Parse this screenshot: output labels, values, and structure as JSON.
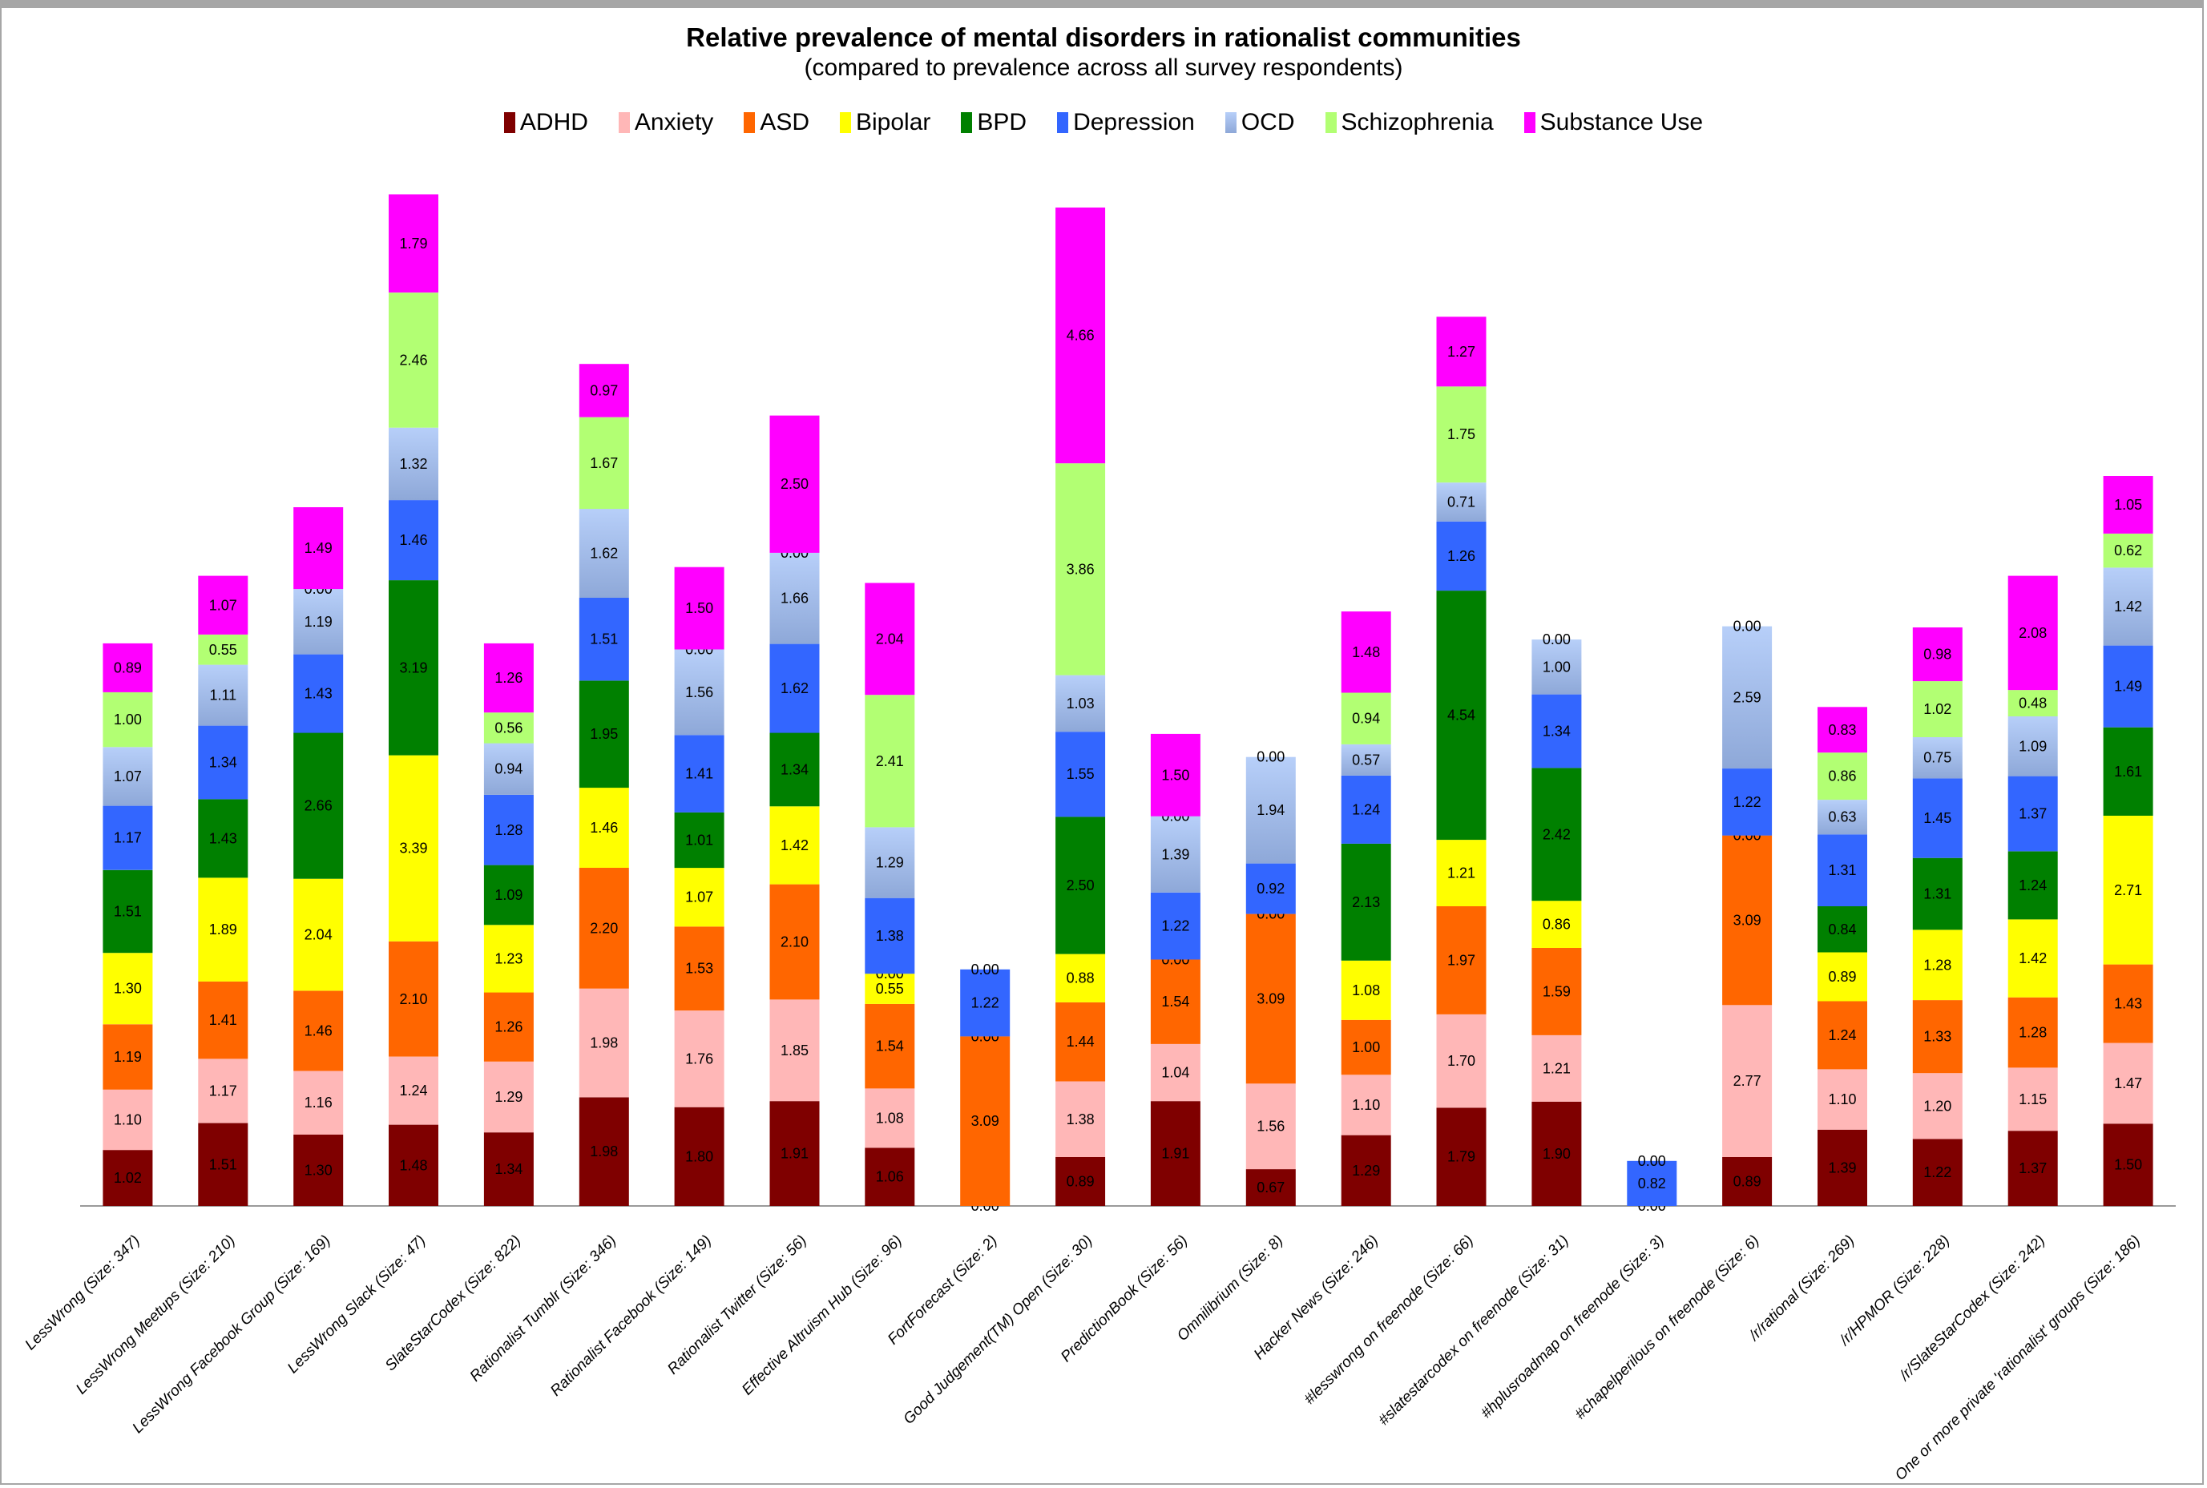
{
  "chart_data": {
    "type": "bar",
    "stacked": true,
    "title": "Relative prevalence of mental disorders in rationalist communities",
    "subtitle": "(compared to prevalence across all survey respondents)",
    "xlabel": "",
    "ylabel": "",
    "legend_position": "top",
    "grid": false,
    "ylim": [
      0,
      19
    ],
    "categories": [
      "LessWrong (Size: 347)",
      "LessWrong Meetups (Size: 210)",
      "LessWrong Facebook Group (Size: 169)",
      "LessWrong Slack (Size: 47)",
      "SlateStarCodex (Size: 822)",
      "Rationalist Tumblr (Size: 346)",
      "Rationalist Facebook (Size: 149)",
      "Rationalist Twitter (Size: 56)",
      "Effective Altruism Hub (Size: 96)",
      "FortForecast (Size: 2)",
      "Good Judgement(TM) Open  (Size: 30)",
      "PredictionBook (Size: 56)",
      "Omnilibrium (Size: 8)",
      "Hacker News (Size: 246)",
      "#lesswrong on freenode  (Size: 66)",
      "#slatestarcodex on freenode  (Size: 31)",
      "#hplusroadmap on freenode  (Size: 3)",
      "#chapelperilous on freenode (Size: 6)",
      "/r/rational (Size: 269)",
      "/r/HPMOR (Size: 228)",
      "/r/SlateStarCodex (Size: 242)",
      "One or more private 'rationalist' groups  (Size: 186)"
    ],
    "series": [
      {
        "name": "ADHD",
        "color": "#7f0000",
        "values": [
          1.02,
          1.51,
          1.3,
          1.48,
          1.34,
          1.98,
          1.8,
          1.91,
          1.06,
          0.0,
          0.89,
          1.91,
          0.67,
          1.29,
          1.79,
          1.9,
          0.0,
          0.89,
          1.39,
          1.22,
          1.37,
          1.5
        ],
        "show_zero": [
          false,
          false,
          false,
          false,
          false,
          false,
          false,
          false,
          false,
          true,
          false,
          false,
          false,
          false,
          false,
          false,
          true,
          false,
          false,
          false,
          false,
          false
        ]
      },
      {
        "name": "Anxiety",
        "color": "#ffb7b7",
        "values": [
          1.1,
          1.17,
          1.16,
          1.24,
          1.29,
          1.98,
          1.76,
          1.85,
          1.08,
          0.0,
          1.38,
          1.04,
          1.56,
          1.1,
          1.7,
          1.21,
          0.0,
          2.77,
          1.1,
          1.2,
          1.15,
          1.47
        ],
        "show_zero": [
          false,
          false,
          false,
          false,
          false,
          false,
          false,
          false,
          false,
          false,
          false,
          false,
          false,
          false,
          false,
          false,
          false,
          false,
          false,
          false,
          false,
          false
        ]
      },
      {
        "name": "ASD",
        "color": "#ff6600",
        "values": [
          1.19,
          1.41,
          1.46,
          2.1,
          1.26,
          2.2,
          1.53,
          2.1,
          1.54,
          3.09,
          1.44,
          1.54,
          3.09,
          1.0,
          1.97,
          1.59,
          0.0,
          3.09,
          1.24,
          1.33,
          1.28,
          1.43
        ],
        "show_zero": [
          false,
          false,
          false,
          false,
          false,
          false,
          false,
          false,
          false,
          false,
          false,
          false,
          false,
          false,
          false,
          false,
          false,
          false,
          false,
          false,
          false,
          false
        ]
      },
      {
        "name": "Bipolar",
        "color": "#ffff00",
        "values": [
          1.3,
          1.89,
          2.04,
          3.39,
          1.23,
          1.46,
          1.07,
          1.42,
          0.55,
          0.0,
          0.88,
          0.0,
          0.0,
          1.08,
          1.21,
          0.86,
          0.0,
          0.0,
          0.89,
          1.28,
          1.42,
          2.71
        ],
        "show_zero": [
          false,
          false,
          false,
          false,
          false,
          false,
          false,
          false,
          false,
          true,
          false,
          true,
          true,
          false,
          false,
          false,
          false,
          true,
          false,
          false,
          false,
          false
        ]
      },
      {
        "name": "BPD",
        "color": "#008000",
        "values": [
          1.51,
          1.43,
          2.66,
          3.19,
          1.09,
          1.95,
          1.01,
          1.34,
          0.0,
          0.0,
          2.5,
          0.0,
          0.0,
          2.13,
          4.54,
          2.42,
          0.0,
          0.0,
          0.84,
          1.31,
          1.24,
          1.61
        ],
        "show_zero": [
          false,
          false,
          false,
          false,
          false,
          false,
          false,
          false,
          true,
          false,
          false,
          false,
          false,
          false,
          false,
          false,
          false,
          false,
          false,
          false,
          false,
          false
        ]
      },
      {
        "name": "Depression",
        "color": "#3366ff",
        "values": [
          1.17,
          1.34,
          1.43,
          1.46,
          1.28,
          1.51,
          1.41,
          1.62,
          1.38,
          1.22,
          1.55,
          1.22,
          0.92,
          1.24,
          1.26,
          1.34,
          0.82,
          1.22,
          1.31,
          1.45,
          1.37,
          1.49
        ],
        "show_zero": [
          false,
          false,
          false,
          false,
          false,
          false,
          false,
          false,
          false,
          false,
          false,
          false,
          false,
          false,
          false,
          false,
          false,
          false,
          false,
          false,
          false,
          false
        ]
      },
      {
        "name": "OCD",
        "color": "#a9c4f5",
        "values": [
          1.07,
          1.11,
          1.19,
          1.32,
          0.94,
          1.62,
          1.56,
          1.66,
          1.29,
          0.0,
          1.03,
          1.39,
          1.94,
          0.57,
          0.71,
          1.0,
          0.0,
          2.59,
          0.63,
          0.75,
          1.09,
          1.42
        ],
        "show_zero": [
          false,
          false,
          false,
          false,
          false,
          false,
          false,
          false,
          false,
          true,
          false,
          false,
          false,
          false,
          false,
          false,
          true,
          false,
          false,
          false,
          false,
          false
        ]
      },
      {
        "name": "Schizophrenia",
        "color": "#b2ff73",
        "values": [
          1.0,
          0.55,
          0.0,
          2.46,
          0.56,
          1.67,
          0.0,
          0.0,
          2.41,
          0.0,
          3.86,
          0.0,
          0.0,
          0.94,
          1.75,
          0.0,
          0.0,
          0.0,
          0.86,
          1.02,
          0.48,
          0.62
        ],
        "show_zero": [
          false,
          false,
          true,
          false,
          false,
          false,
          true,
          true,
          false,
          false,
          false,
          true,
          true,
          false,
          false,
          true,
          false,
          true,
          false,
          false,
          false,
          false
        ]
      },
      {
        "name": "Substance Use",
        "color": "#ff00ff",
        "values": [
          0.89,
          1.07,
          1.49,
          1.79,
          1.26,
          0.97,
          1.5,
          2.5,
          2.04,
          0.0,
          4.66,
          1.5,
          0.0,
          1.48,
          1.27,
          0.0,
          0.0,
          0.0,
          0.83,
          0.98,
          2.08,
          1.05
        ],
        "show_zero": [
          false,
          false,
          false,
          false,
          false,
          false,
          false,
          false,
          false,
          false,
          false,
          false,
          false,
          false,
          false,
          false,
          false,
          false,
          false,
          false,
          false,
          false
        ]
      }
    ]
  }
}
